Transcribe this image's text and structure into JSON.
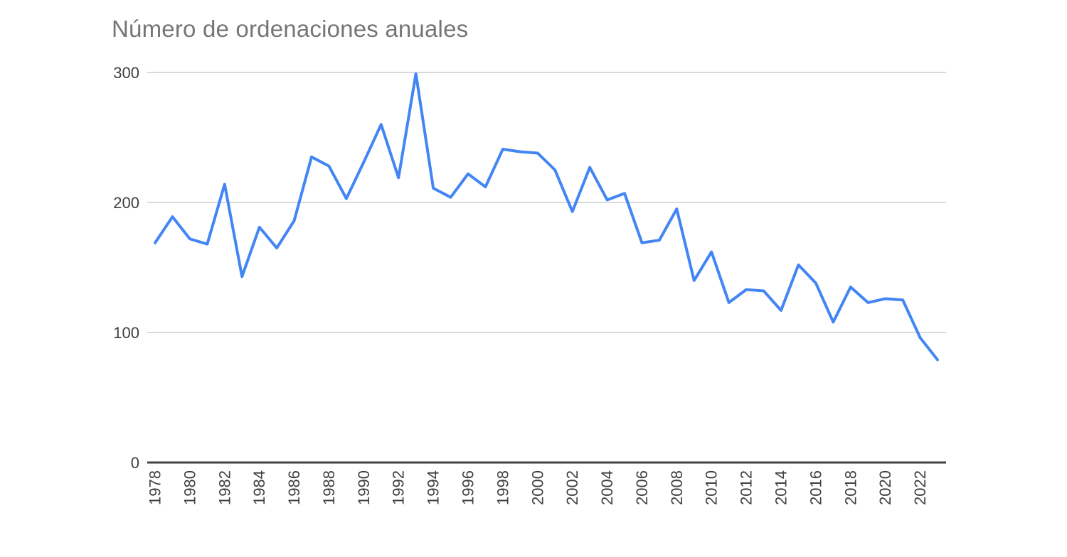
{
  "chart_data": {
    "type": "line",
    "title": "Número de ordenaciones anuales",
    "xlabel": "",
    "ylabel": "",
    "x": [
      1978,
      1979,
      1980,
      1981,
      1982,
      1983,
      1984,
      1985,
      1986,
      1987,
      1988,
      1989,
      1990,
      1991,
      1992,
      1993,
      1994,
      1995,
      1996,
      1997,
      1998,
      1999,
      2000,
      2001,
      2002,
      2003,
      2004,
      2005,
      2006,
      2007,
      2008,
      2009,
      2010,
      2011,
      2012,
      2013,
      2014,
      2015,
      2016,
      2017,
      2018,
      2019,
      2020,
      2021,
      2022,
      2023
    ],
    "values": [
      169,
      189,
      172,
      168,
      214,
      143,
      181,
      165,
      186,
      235,
      228,
      203,
      231,
      260,
      219,
      299,
      211,
      204,
      222,
      212,
      241,
      239,
      238,
      225,
      193,
      227,
      202,
      207,
      169,
      171,
      195,
      140,
      162,
      123,
      133,
      132,
      117,
      152,
      138,
      108,
      135,
      123,
      126,
      125,
      96,
      79
    ],
    "ylim": [
      0,
      300
    ],
    "yticks": [
      0,
      100,
      200,
      300
    ],
    "xticks": [
      1978,
      1980,
      1982,
      1984,
      1986,
      1988,
      1990,
      1992,
      1994,
      1996,
      1998,
      2000,
      2002,
      2004,
      2006,
      2008,
      2010,
      2012,
      2014,
      2016,
      2018,
      2020,
      2022
    ],
    "grid": "horizontal-only",
    "legend": "none"
  },
  "colors": {
    "line": "#4285f4",
    "gridline": "#d9d9d9",
    "axis_line": "#424242",
    "tick_label": "#3c4043",
    "title": "#757575",
    "background": "#ffffff"
  }
}
